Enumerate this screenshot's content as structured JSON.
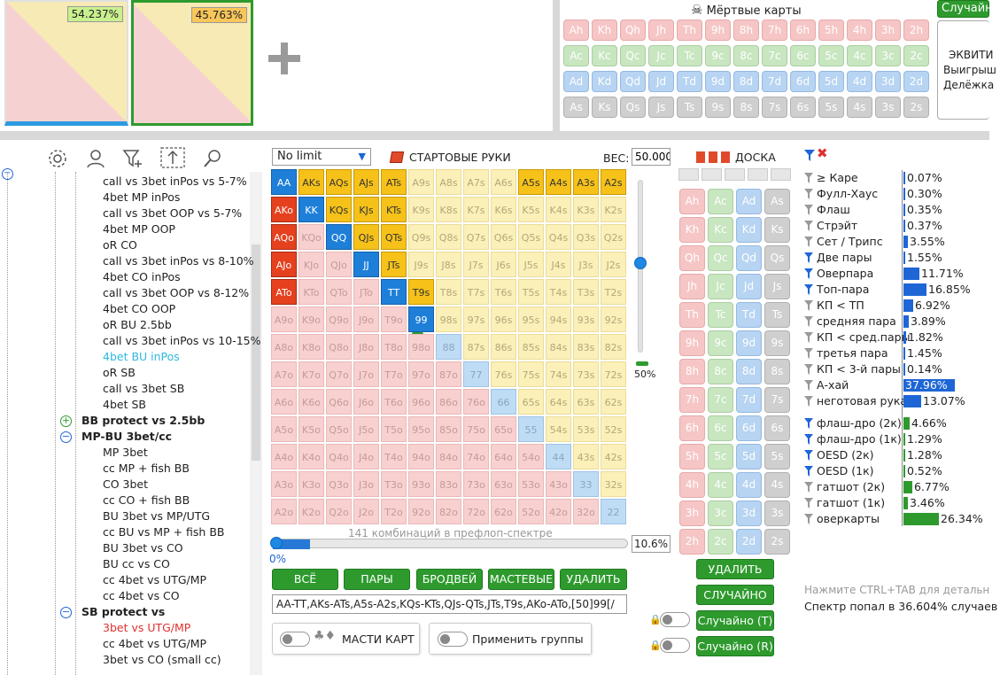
{
  "top": {
    "equity_left": "54.237%",
    "equity_right": "45.763%",
    "dead_cards_title": "Мёртвые карты",
    "random_button": "Случайно",
    "equity_panel_line1": "ЭКВИТИ",
    "equity_panel_line2": "Выигрыш",
    "equity_panel_line3": "Делёжка",
    "dead_cards": [
      [
        "Ah",
        "Kh",
        "Qh",
        "Jh",
        "Th",
        "9h",
        "8h",
        "7h",
        "6h",
        "5h",
        "4h",
        "3h",
        "2h"
      ],
      [
        "Ac",
        "Kc",
        "Qc",
        "Jc",
        "Tc",
        "9c",
        "8c",
        "7c",
        "6c",
        "5c",
        "4c",
        "3c",
        "2c"
      ],
      [
        "Ad",
        "Kd",
        "Qd",
        "Jd",
        "Td",
        "9d",
        "8d",
        "7d",
        "6d",
        "5d",
        "4d",
        "3d",
        "2d"
      ],
      [
        "As",
        "Ks",
        "Qs",
        "Js",
        "Ts",
        "9s",
        "8s",
        "7s",
        "6s",
        "5s",
        "4s",
        "3s",
        "2s"
      ]
    ]
  },
  "toolbar": {
    "icons": [
      "gear-icon",
      "user-icon",
      "filter-plus-icon",
      "share-icon",
      "search-icon"
    ]
  },
  "tree": {
    "items": [
      {
        "text": "call vs 3bet inPos vs 5-7%",
        "indent": 116,
        "style": "normal"
      },
      {
        "text": "4bet MP inPos",
        "indent": 116,
        "style": "normal"
      },
      {
        "text": "call vs 3bet OOP vs 5-7%",
        "indent": 116,
        "style": "normal"
      },
      {
        "text": "4bet MP OOP",
        "indent": 116,
        "style": "normal"
      },
      {
        "text": "oR CO",
        "indent": 116,
        "style": "normal"
      },
      {
        "text": "call vs 3bet inPos vs 8-10%",
        "indent": 116,
        "style": "normal"
      },
      {
        "text": "4bet CO inPos",
        "indent": 116,
        "style": "normal"
      },
      {
        "text": "call vs 3bet OOP vs 8-12%",
        "indent": 116,
        "style": "normal"
      },
      {
        "text": "4bet CO OOP",
        "indent": 116,
        "style": "normal"
      },
      {
        "text": "oR BU 2.5bb",
        "indent": 116,
        "style": "normal"
      },
      {
        "text": "call vs 3bet inPos vs 10-15%",
        "indent": 116,
        "style": "normal"
      },
      {
        "text": "4bet BU inPos",
        "indent": 116,
        "style": "cyan"
      },
      {
        "text": "oR SB",
        "indent": 116,
        "style": "normal"
      },
      {
        "text": "call vs 3bet SB",
        "indent": 116,
        "style": "normal"
      },
      {
        "text": "4bet SB",
        "indent": 116,
        "style": "normal"
      },
      {
        "text": "BB protect vs 2.5bb",
        "indent": 92,
        "style": "bold",
        "expander": "plus"
      },
      {
        "text": "MP-BU 3bet/cc",
        "indent": 92,
        "style": "bold",
        "expander": "minus"
      },
      {
        "text": "MP 3bet",
        "indent": 116,
        "style": "normal"
      },
      {
        "text": "cc MP + fish BB",
        "indent": 116,
        "style": "normal"
      },
      {
        "text": "CO 3bet",
        "indent": 116,
        "style": "normal"
      },
      {
        "text": "cc CO + fish BB",
        "indent": 116,
        "style": "normal"
      },
      {
        "text": "BU 3bet vs MP/UTG",
        "indent": 116,
        "style": "normal"
      },
      {
        "text": "cc BU vs MP + fish BB",
        "indent": 116,
        "style": "normal"
      },
      {
        "text": "BU 3bet vs CO",
        "indent": 116,
        "style": "normal"
      },
      {
        "text": "BU cc vs CO",
        "indent": 116,
        "style": "normal"
      },
      {
        "text": "cc 4bet vs UTG/MP",
        "indent": 116,
        "style": "normal"
      },
      {
        "text": "cc 4bet vs CO",
        "indent": 116,
        "style": "normal"
      },
      {
        "text": "SB protect vs",
        "indent": 92,
        "style": "bold",
        "expander": "minus"
      },
      {
        "text": "3bet vs UTG/MP",
        "indent": 116,
        "style": "red"
      },
      {
        "text": "cc 4bet vs UTG/MP",
        "indent": 116,
        "style": "normal"
      },
      {
        "text": "3bet vs CO (small cc)",
        "indent": 116,
        "style": "normal"
      }
    ]
  },
  "range": {
    "limit_select": "No limit",
    "title": "СТАРТОВЫЕ РУКИ",
    "weight_label": "ВЕС:",
    "weight_value": "50.000",
    "slider_pct": "50%",
    "combos_text": "141 комбинаций в префлоп-спектре",
    "progress_left": "0%",
    "progress_right": "10.6%",
    "progress_fraction": 0.106,
    "buttons": [
      "ВСЁ",
      "ПАРЫ",
      "БРОДВЕЙ",
      "МАСТЕВЫЕ",
      "УДАЛИТЬ"
    ],
    "range_text": "AA-TT,AKs-ATs,A5s-A2s,KQs-KTs,QJs-QTs,JTs,T9s,AKo-ATo,[50]99[/",
    "suits_label": "МАСТИ КАРТ",
    "groups_label": "Применить группы",
    "ranks": [
      "A",
      "K",
      "Q",
      "J",
      "T",
      "9",
      "8",
      "7",
      "6",
      "5",
      "4",
      "3",
      "2"
    ],
    "selected_pairs": [
      "AA",
      "KK",
      "QQ",
      "JJ",
      "TT"
    ],
    "selected_suited": [
      "AKs",
      "AQs",
      "AJs",
      "ATs",
      "KQs",
      "KJs",
      "KTs",
      "QJs",
      "QTs",
      "JTs",
      "T9s",
      "A5s",
      "A4s",
      "A3s",
      "A2s"
    ],
    "selected_offsuit": [
      "AKo",
      "AQo",
      "AJo",
      "ATo"
    ],
    "weighted": [
      "99"
    ]
  },
  "board": {
    "title": "ДОСКА",
    "cards": [
      [
        "Ah",
        "Ac",
        "Ad",
        "As"
      ],
      [
        "Kh",
        "Kc",
        "Kd",
        "Ks"
      ],
      [
        "Qh",
        "Qc",
        "Qd",
        "Qs"
      ],
      [
        "Jh",
        "Jc",
        "Jd",
        "Js"
      ],
      [
        "Th",
        "Tc",
        "Td",
        "Ts"
      ],
      [
        "9h",
        "9c",
        "9d",
        "9s"
      ],
      [
        "8h",
        "8c",
        "8d",
        "8s"
      ],
      [
        "7h",
        "7c",
        "7d",
        "7s"
      ],
      [
        "6h",
        "6c",
        "6d",
        "6s"
      ],
      [
        "5h",
        "5c",
        "5d",
        "5s"
      ],
      [
        "4h",
        "4c",
        "4d",
        "4s"
      ],
      [
        "3h",
        "3c",
        "3d",
        "3s"
      ],
      [
        "2h",
        "2c",
        "2d",
        "2s"
      ]
    ],
    "delete_btn": "УДАЛИТЬ",
    "random_btn": "СЛУЧАЙНО",
    "random_t": "Случайно (Т)",
    "random_r": "Случайно (R)"
  },
  "stats": {
    "rows": [
      {
        "label": "≥ Каре",
        "value": "0.07%",
        "fraction": 0.0007,
        "kind": "blue"
      },
      {
        "label": "Фулл-Хаус",
        "value": "0.30%",
        "fraction": 0.003,
        "kind": "blue"
      },
      {
        "label": "Флаш",
        "value": "0.35%",
        "fraction": 0.0035,
        "kind": "blue"
      },
      {
        "label": "Стрэйт",
        "value": "0.37%",
        "fraction": 0.0037,
        "kind": "blue"
      },
      {
        "label": "Сет / Трипс",
        "value": "3.55%",
        "fraction": 0.0355,
        "kind": "blue"
      },
      {
        "label": "Две пары",
        "value": "1.55%",
        "fraction": 0.0155,
        "kind": "blue"
      },
      {
        "label": "Оверпара",
        "value": "11.71%",
        "fraction": 0.1171,
        "kind": "blue"
      },
      {
        "label": "Топ-пара",
        "value": "16.85%",
        "fraction": 0.1685,
        "kind": "blue"
      },
      {
        "label": "КП < ТП",
        "value": "6.92%",
        "fraction": 0.0692,
        "kind": "blue"
      },
      {
        "label": "средняя пара",
        "value": "3.89%",
        "fraction": 0.0389,
        "kind": "blue"
      },
      {
        "label": "КП < сред.пары",
        "value": "1.82%",
        "fraction": 0.0182,
        "kind": "blue"
      },
      {
        "label": "третья пара",
        "value": "1.45%",
        "fraction": 0.0145,
        "kind": "blue"
      },
      {
        "label": "КП < 3-й пары",
        "value": "0.14%",
        "fraction": 0.0014,
        "kind": "blue"
      },
      {
        "label": "А-хай",
        "value": "37.96%",
        "fraction": 0.3796,
        "kind": "blue"
      },
      {
        "label": "неготовая рука",
        "value": "13.07%",
        "fraction": 0.1307,
        "kind": "blue"
      }
    ],
    "draws": [
      {
        "label": "флаш-дро (2к)",
        "value": "4.66%",
        "fraction": 0.0466
      },
      {
        "label": "флаш-дро (1к)",
        "value": "1.29%",
        "fraction": 0.0129
      },
      {
        "label": "OESD (2к)",
        "value": "1.28%",
        "fraction": 0.0128
      },
      {
        "label": "OESD (1к)",
        "value": "0.52%",
        "fraction": 0.0052
      },
      {
        "label": "гатшот (2к)",
        "value": "6.77%",
        "fraction": 0.0677
      },
      {
        "label": "гатшот (1к)",
        "value": "3.46%",
        "fraction": 0.0346
      },
      {
        "label": "оверкарты",
        "value": "26.34%",
        "fraction": 0.2634
      }
    ],
    "hint": "Нажмите CTRL+TAB для детальн",
    "summary": "Спектр попал в 36.604% случаев"
  }
}
